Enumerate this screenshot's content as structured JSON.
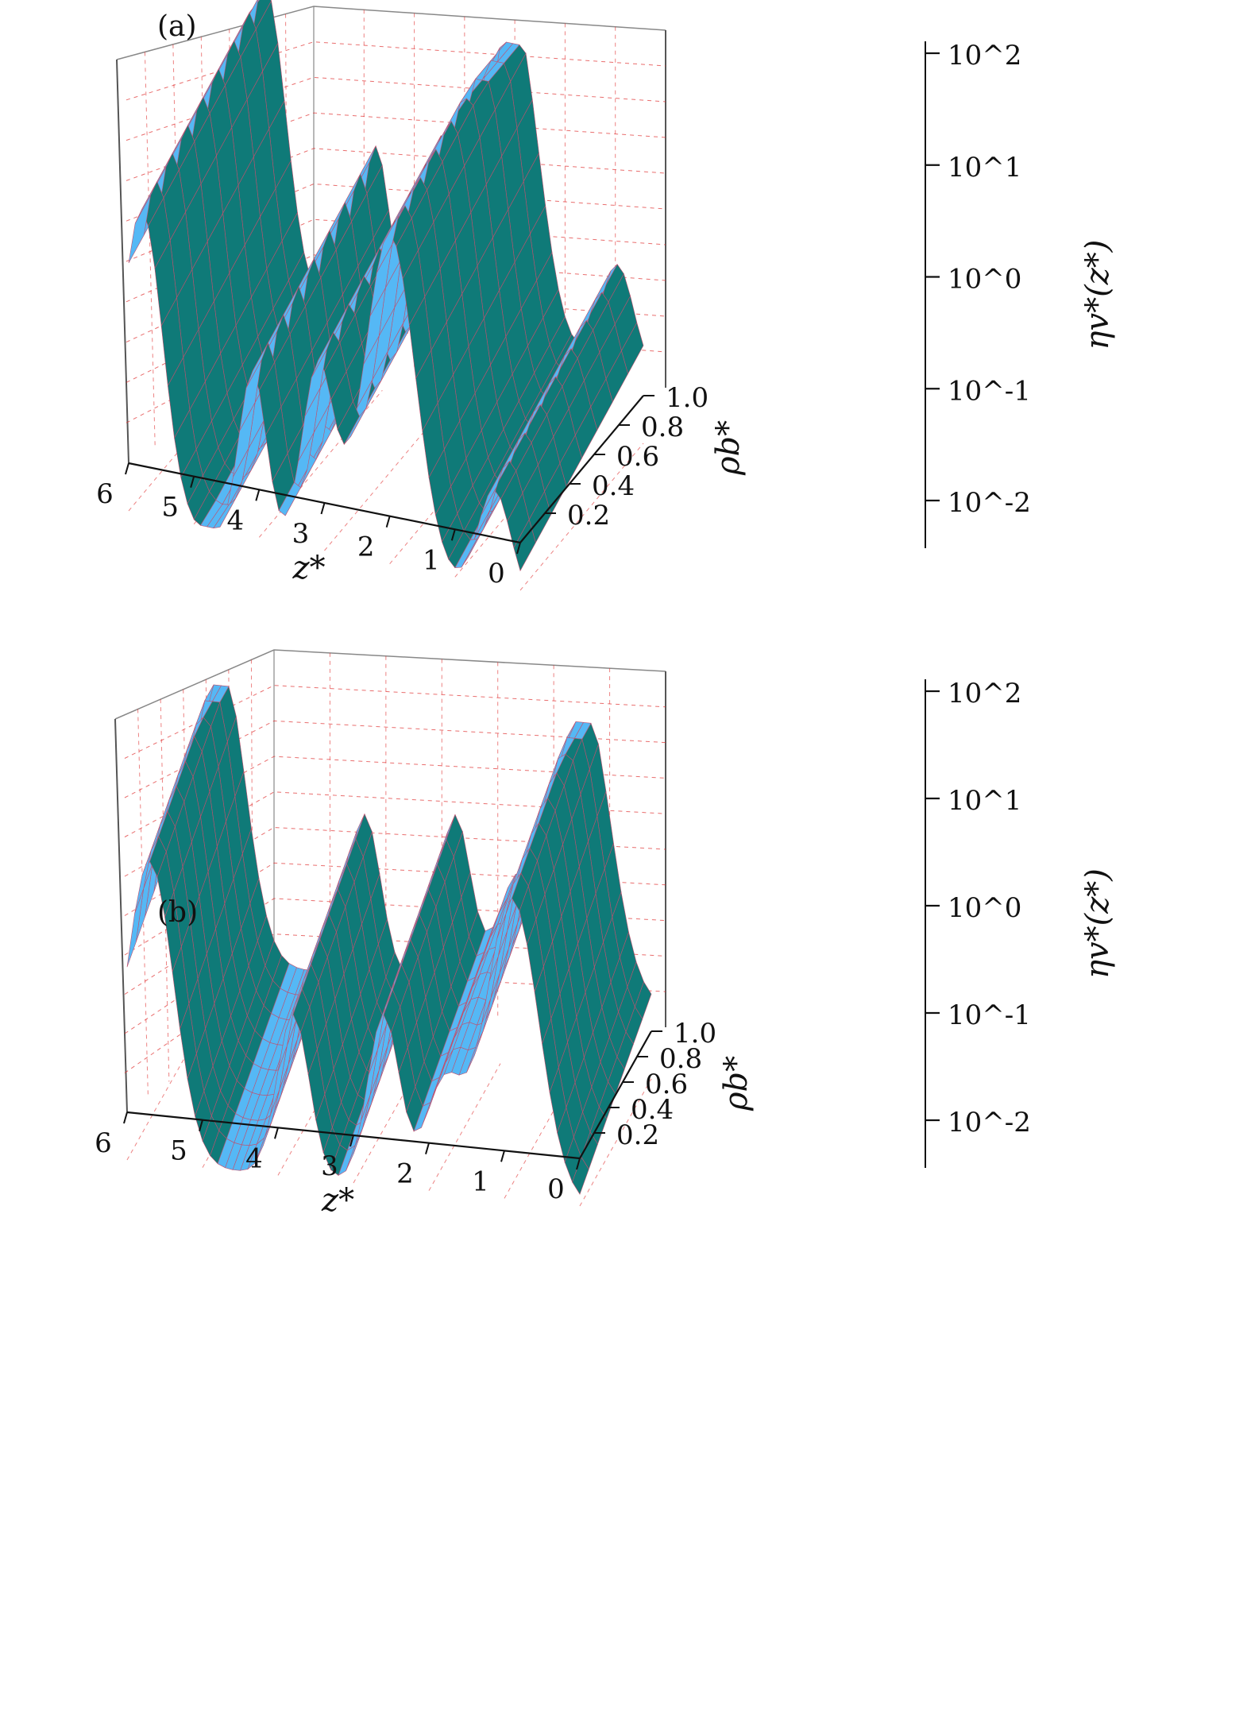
{
  "chart_data": [
    {
      "type": "surface3d",
      "panel_label": "(a)",
      "xlabel": "z*",
      "ylabel": "ρb*",
      "zlabel": "ηv*(z*)",
      "x_ticks": [
        "6",
        "5",
        "4",
        "3",
        "2",
        "1",
        "0"
      ],
      "y_ticks": [
        "0.2",
        "0.4",
        "0.6",
        "0.8",
        "1.0"
      ],
      "z_ticks": [
        "10^-2",
        "10^-1",
        "10^0",
        "10^1",
        "10^2"
      ],
      "xlim": [
        0,
        6
      ],
      "ylim": [
        0,
        1
      ],
      "zlim": [
        0.005,
        100
      ],
      "z_scale": "log",
      "grid": true,
      "colors": {
        "surface": "#55b8f5",
        "underside": "#0f7a78",
        "mesh": "#c0506e",
        "grid": "#e03030"
      }
    },
    {
      "type": "surface3d",
      "panel_label": "(b)",
      "xlabel": "z*",
      "ylabel": "ρb*",
      "zlabel": "ηv*(z*)",
      "x_ticks": [
        "6",
        "5",
        "4",
        "3",
        "2",
        "1",
        "0"
      ],
      "y_ticks": [
        "0.2",
        "0.4",
        "0.6",
        "0.8",
        "1.0"
      ],
      "z_ticks": [
        "10^-2",
        "10^-1",
        "10^0",
        "10^1",
        "10^2"
      ],
      "xlim": [
        0,
        6
      ],
      "ylim": [
        0,
        1
      ],
      "zlim": [
        0.005,
        100
      ],
      "z_scale": "log",
      "grid": true,
      "colors": {
        "surface": "#55b8f5",
        "underside": "#0f7a78",
        "mesh": "#c0506e",
        "grid": "#e03030"
      }
    }
  ]
}
